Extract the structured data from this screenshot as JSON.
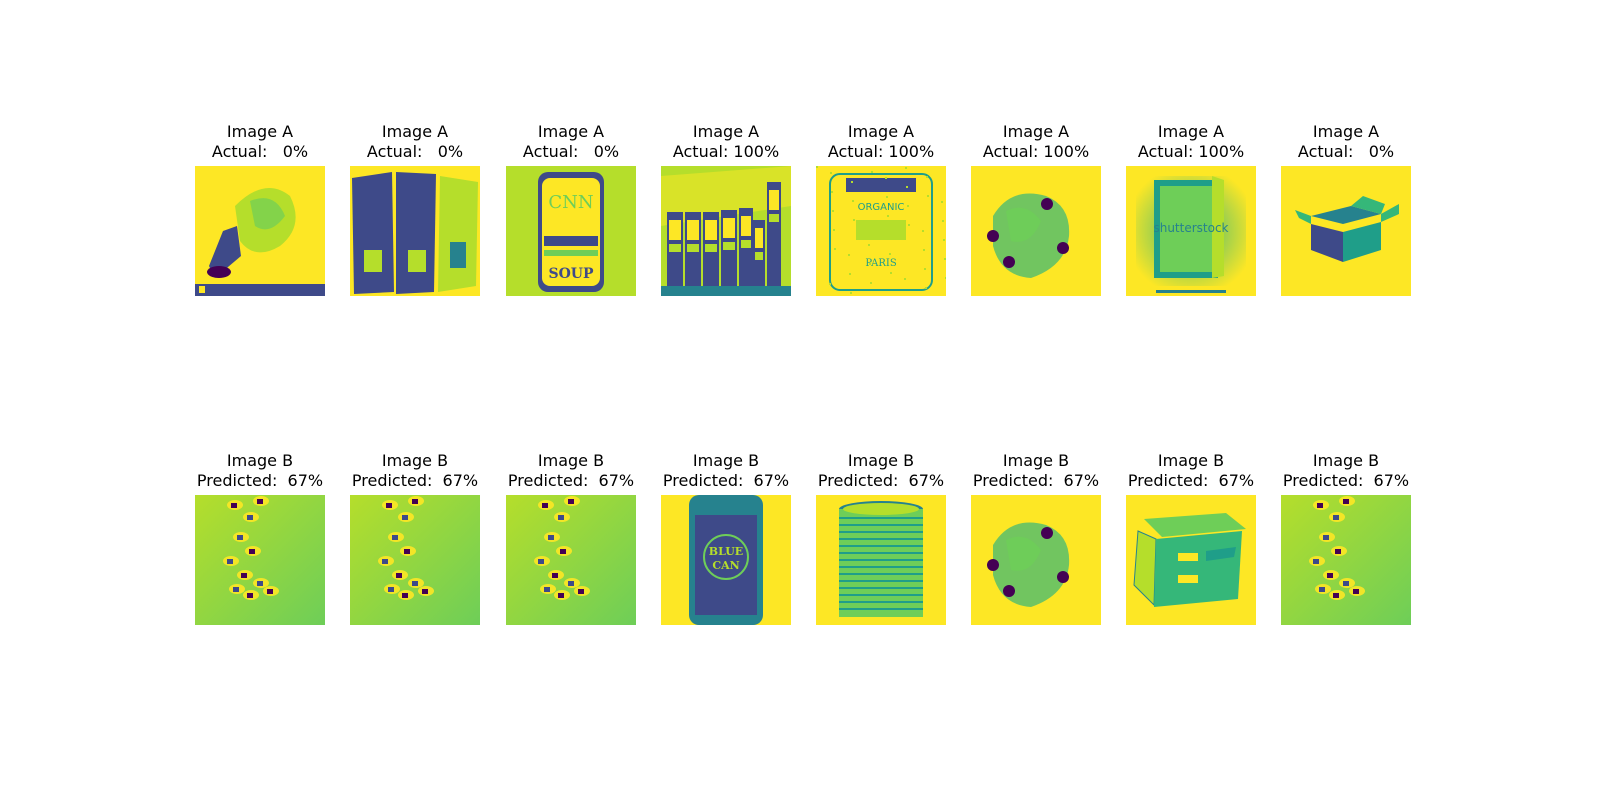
{
  "colors": {
    "yellow": "#fde725",
    "lime": "#b5de2b",
    "green": "#6ece58",
    "teal": "#35b779",
    "cyan": "#1f9e89",
    "blue": "#26828e",
    "indigo": "#3e4a89",
    "purple": "#440154"
  },
  "rows": [
    {
      "cells": [
        {
          "line1": "Image A",
          "line2": "Actual:   0%",
          "icon": "crumpled-bag-icon"
        },
        {
          "line1": "Image A",
          "line2": "Actual:   0%",
          "icon": "cardboard-panels-icon"
        },
        {
          "line1": "Image A",
          "line2": "Actual:   0%",
          "icon": "soup-can-icon",
          "labels": [
            "CNN",
            "SOUP"
          ]
        },
        {
          "line1": "Image A",
          "line2": "Actual: 100%",
          "icon": "beverage-cans-icon"
        },
        {
          "line1": "Image A",
          "line2": "Actual: 100%",
          "icon": "tin-can-icon",
          "labels": [
            "ORGANIC",
            "PARIS"
          ]
        },
        {
          "line1": "Image A",
          "line2": "Actual: 100%",
          "icon": "plastic-bottles-icon"
        },
        {
          "line1": "Image A",
          "line2": "Actual: 100%",
          "icon": "open-box-top-icon",
          "labels": [
            "shutterstock"
          ]
        },
        {
          "line1": "Image A",
          "line2": "Actual:   0%",
          "icon": "cardboard-box-icon"
        }
      ]
    },
    {
      "cells": [
        {
          "line1": "Image B",
          "line2": "Predicted:  67%",
          "icon": "scattered-items-icon"
        },
        {
          "line1": "Image B",
          "line2": "Predicted:  67%",
          "icon": "scattered-items-icon"
        },
        {
          "line1": "Image B",
          "line2": "Predicted:  67%",
          "icon": "scattered-items-icon"
        },
        {
          "line1": "Image B",
          "line2": "Predicted:  67%",
          "icon": "blue-can-icon",
          "labels": [
            "BLUE",
            "CAN"
          ]
        },
        {
          "line1": "Image B",
          "line2": "Predicted:  67%",
          "icon": "ribbed-tin-can-icon"
        },
        {
          "line1": "Image B",
          "line2": "Predicted:  67%",
          "icon": "plastic-bottles-icon"
        },
        {
          "line1": "Image B",
          "line2": "Predicted:  67%",
          "icon": "archive-box-icon"
        },
        {
          "line1": "Image B",
          "line2": "Predicted:  67%",
          "icon": "scattered-items-icon"
        }
      ]
    }
  ]
}
